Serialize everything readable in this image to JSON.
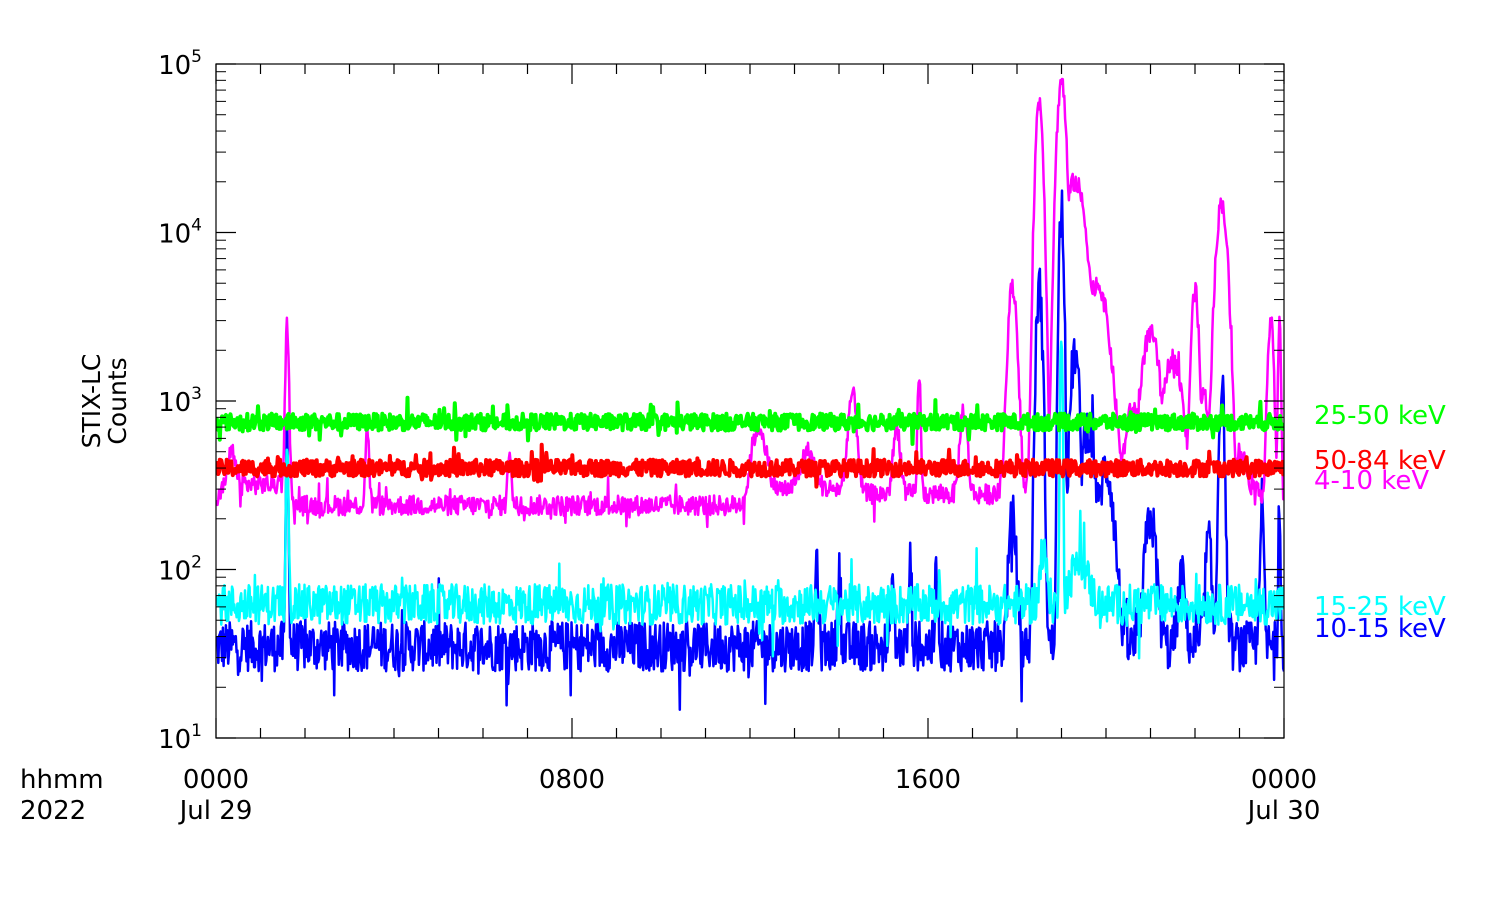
{
  "chart_data": {
    "type": "line",
    "title": "",
    "ylabel_line1": "STIX-LC",
    "ylabel_line2": "Counts",
    "y_scale": "log",
    "ylim": [
      10,
      100000
    ],
    "y_ticks": [
      {
        "value": 10,
        "base": "10",
        "exp": "1"
      },
      {
        "value": 100,
        "base": "10",
        "exp": "2"
      },
      {
        "value": 1000,
        "base": "10",
        "exp": "3"
      },
      {
        "value": 10000,
        "base": "10",
        "exp": "4"
      },
      {
        "value": 100000,
        "base": "10",
        "exp": "5"
      }
    ],
    "x_unit": "hours since 2022-07-29 00:00",
    "xlim": [
      0,
      24
    ],
    "x_corner_label_1": "hhmm",
    "x_corner_label_2": "2022",
    "x_ticks": [
      {
        "value": 0,
        "line1": "0000",
        "line2": "Jul 29"
      },
      {
        "value": 8,
        "line1": "0800",
        "line2": ""
      },
      {
        "value": 16,
        "line1": "1600",
        "line2": ""
      },
      {
        "value": 24,
        "line1": "0000",
        "line2": "Jul 30"
      }
    ],
    "grid": false,
    "legend_position": "right-outside",
    "series": [
      {
        "name": "25-50 keV",
        "color": "#00ff00",
        "noise": 0.05,
        "baseline": 750,
        "peaks": []
      },
      {
        "name": "50-84 keV",
        "color": "#ff0000",
        "noise": 0.05,
        "baseline": 400,
        "peaks": []
      },
      {
        "name": "4-10 keV",
        "color": "#ff00ff",
        "noise": 0.06,
        "baseline_segments": [
          {
            "from": 0,
            "to": 0.6,
            "value": 260
          },
          {
            "from": 0.6,
            "to": 1.5,
            "value": 320
          },
          {
            "from": 1.5,
            "to": 12.0,
            "value": 240
          },
          {
            "from": 12.0,
            "to": 14.5,
            "value": 300
          },
          {
            "from": 14.5,
            "to": 24,
            "value": 280
          }
        ],
        "peaks": [
          {
            "t": 0.35,
            "v": 500,
            "w": 0.15
          },
          {
            "t": 1.6,
            "v": 2800,
            "w": 0.05
          },
          {
            "t": 3.4,
            "v": 700,
            "w": 0.05
          },
          {
            "t": 6.6,
            "v": 520,
            "w": 0.05
          },
          {
            "t": 12.2,
            "v": 700,
            "w": 0.2
          },
          {
            "t": 13.3,
            "v": 500,
            "w": 0.2
          },
          {
            "t": 14.3,
            "v": 1100,
            "w": 0.12
          },
          {
            "t": 15.3,
            "v": 700,
            "w": 0.1
          },
          {
            "t": 15.8,
            "v": 1500,
            "w": 0.04
          },
          {
            "t": 16.8,
            "v": 900,
            "w": 0.1
          },
          {
            "t": 17.9,
            "v": 4800,
            "w": 0.12
          },
          {
            "t": 18.5,
            "v": 60000,
            "w": 0.1
          },
          {
            "t": 19.0,
            "v": 80000,
            "w": 0.12
          },
          {
            "t": 19.3,
            "v": 20000,
            "w": 0.3
          },
          {
            "t": 19.8,
            "v": 5000,
            "w": 0.3
          },
          {
            "t": 20.6,
            "v": 900,
            "w": 0.2
          },
          {
            "t": 21.0,
            "v": 2500,
            "w": 0.25
          },
          {
            "t": 21.5,
            "v": 1800,
            "w": 0.25
          },
          {
            "t": 22.2,
            "v": 1100,
            "w": 0.15
          },
          {
            "t": 22.0,
            "v": 4500,
            "w": 0.1
          },
          {
            "t": 22.6,
            "v": 15000,
            "w": 0.15
          },
          {
            "t": 23.0,
            "v": 500,
            "w": 0.2
          },
          {
            "t": 23.7,
            "v": 3000,
            "w": 0.08
          },
          {
            "t": 23.9,
            "v": 2800,
            "w": 0.04
          }
        ]
      },
      {
        "name": "15-25 keV",
        "color": "#00ffff",
        "noise": 0.12,
        "baseline": 62,
        "peaks": [
          {
            "t": 1.6,
            "v": 700,
            "w": 0.03
          },
          {
            "t": 18.6,
            "v": 120,
            "w": 0.1
          },
          {
            "t": 19.0,
            "v": 3000,
            "w": 0.03
          },
          {
            "t": 19.4,
            "v": 110,
            "w": 0.25
          }
        ]
      },
      {
        "name": "10-15 keV",
        "color": "#0000ff",
        "noise": 0.15,
        "baseline": 35,
        "peaks": [
          {
            "t": 1.6,
            "v": 700,
            "w": 0.03
          },
          {
            "t": 13.5,
            "v": 120,
            "w": 0.04
          },
          {
            "t": 14.0,
            "v": 100,
            "w": 0.04
          },
          {
            "t": 15.2,
            "v": 90,
            "w": 0.04
          },
          {
            "t": 15.6,
            "v": 110,
            "w": 0.04
          },
          {
            "t": 16.2,
            "v": 100,
            "w": 0.04
          },
          {
            "t": 17.9,
            "v": 200,
            "w": 0.1
          },
          {
            "t": 18.5,
            "v": 4800,
            "w": 0.08
          },
          {
            "t": 19.0,
            "v": 15000,
            "w": 0.06
          },
          {
            "t": 19.3,
            "v": 1900,
            "w": 0.12
          },
          {
            "t": 19.6,
            "v": 700,
            "w": 0.2
          },
          {
            "t": 20.0,
            "v": 400,
            "w": 0.2
          },
          {
            "t": 21.0,
            "v": 200,
            "w": 0.15
          },
          {
            "t": 21.7,
            "v": 90,
            "w": 0.1
          },
          {
            "t": 22.3,
            "v": 150,
            "w": 0.08
          },
          {
            "t": 22.6,
            "v": 1200,
            "w": 0.07
          },
          {
            "t": 23.5,
            "v": 250,
            "w": 0.05
          },
          {
            "t": 23.9,
            "v": 220,
            "w": 0.03
          }
        ]
      }
    ],
    "legend_order": [
      "25-50 keV",
      "50-84 keV",
      "4-10 keV",
      "15-25 keV",
      "10-15 keV"
    ]
  }
}
